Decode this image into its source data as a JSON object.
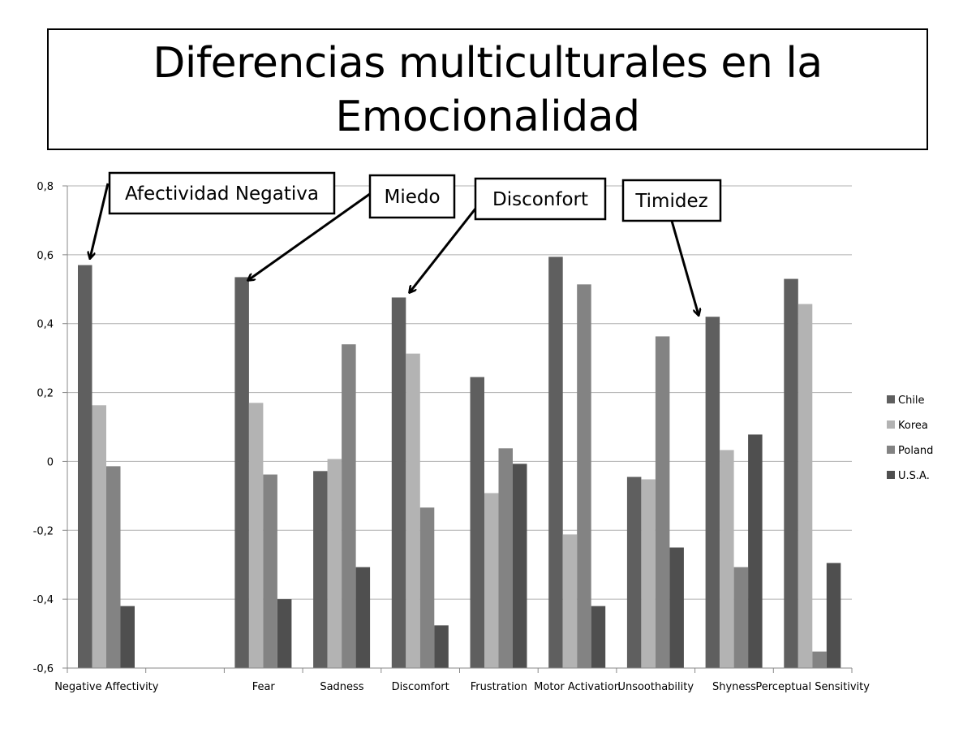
{
  "slide": {
    "title_line1": "Diferencias multiculturales en la",
    "title_line2": "Emocionalidad"
  },
  "annotations": [
    {
      "label": "Afectividad Negativa",
      "points_to": "Negative Affectivity"
    },
    {
      "label": "Miedo",
      "points_to": "Fear"
    },
    {
      "label": "Disconfort",
      "points_to": "Discomfort"
    },
    {
      "label": "Timidez",
      "points_to": "Shyness"
    }
  ],
  "chart_data": {
    "type": "bar",
    "title": "Diferencias multiculturales en la Emocionalidad",
    "xlabel": "",
    "ylabel": "",
    "ylim": [
      -0.6,
      0.8
    ],
    "yticks": [
      "-0,6",
      "-0,4",
      "-0,2",
      "0",
      "0,2",
      "0,4",
      "0,6",
      "0,8"
    ],
    "grid": true,
    "legend_position": "right",
    "categories": [
      "Negative Affectivity",
      "",
      "Fear",
      "Sadness",
      "Discomfort",
      "Frustration",
      "Motor Activation",
      "Unsoothability",
      "Shyness",
      "Perceptual Sensitivity"
    ],
    "series": [
      {
        "name": "Chile",
        "color": "#5f5f5f",
        "values": [
          0.57,
          null,
          0.535,
          -0.028,
          0.476,
          0.245,
          0.594,
          -0.045,
          0.42,
          0.53
        ]
      },
      {
        "name": "Korea",
        "color": "#b3b3b3",
        "values": [
          0.163,
          null,
          0.17,
          0.007,
          0.313,
          -0.092,
          -0.212,
          -0.052,
          0.033,
          0.457
        ]
      },
      {
        "name": "Poland",
        "color": "#838383",
        "values": [
          -0.014,
          null,
          -0.038,
          0.34,
          -0.134,
          0.038,
          0.514,
          0.363,
          -0.307,
          -0.552
        ]
      },
      {
        "name": "U.S.A.",
        "color": "#4f4f4f",
        "values": [
          -0.42,
          null,
          -0.4,
          -0.307,
          -0.476,
          -0.007,
          -0.42,
          -0.25,
          0.078,
          -0.295
        ]
      }
    ]
  }
}
